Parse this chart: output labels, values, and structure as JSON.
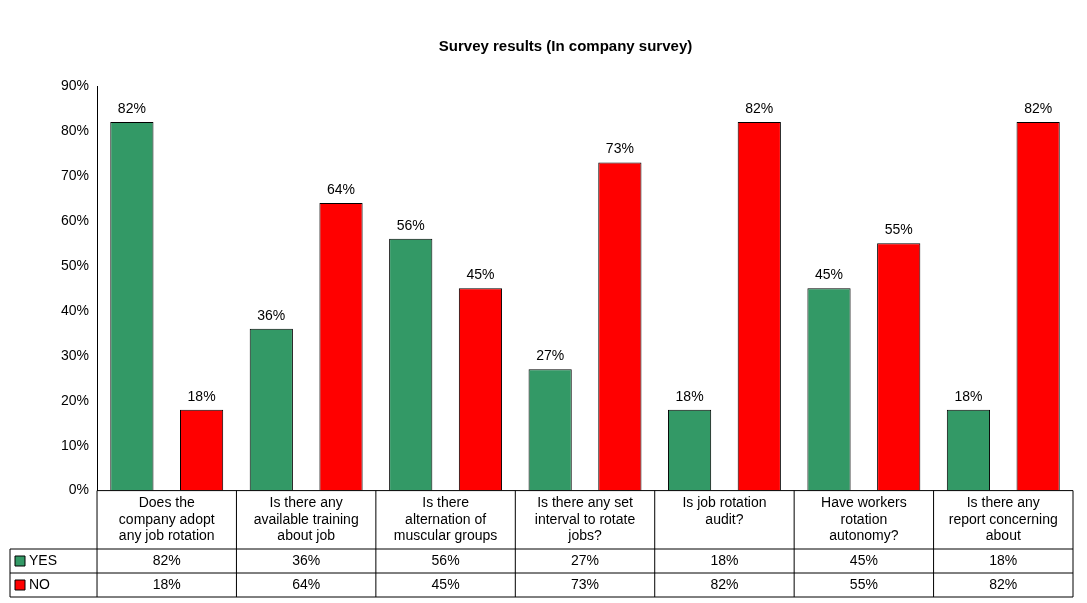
{
  "chart_data": {
    "type": "bar",
    "title": "Survey results (In company survey)",
    "categories": [
      "Does the company adopt any job rotation",
      "Is there any available training about job",
      "Is there alternation of muscular groups",
      "Is there any set interval to rotate jobs?",
      "Is job rotation audit?",
      "Have workers rotation autonomy?",
      "Is there any report concerning about"
    ],
    "series": [
      {
        "name": "YES",
        "color": "#339966",
        "values": [
          82,
          36,
          56,
          27,
          18,
          45,
          18
        ],
        "value_labels": [
          "82%",
          "36%",
          "56%",
          "27%",
          "18%",
          "45%",
          "18%"
        ]
      },
      {
        "name": "NO",
        "color": "#ff0000",
        "values": [
          18,
          64,
          45,
          73,
          82,
          55,
          82
        ],
        "value_labels": [
          "18%",
          "64%",
          "45%",
          "73%",
          "82%",
          "55%",
          "82%"
        ]
      }
    ],
    "ylim": [
      0,
      90
    ],
    "yticks": [
      {
        "value": 0,
        "label": "0%"
      },
      {
        "value": 10,
        "label": "10%"
      },
      {
        "value": 20,
        "label": "20%"
      },
      {
        "value": 30,
        "label": "30%"
      },
      {
        "value": 40,
        "label": "40%"
      },
      {
        "value": 50,
        "label": "50%"
      },
      {
        "value": 60,
        "label": "60%"
      },
      {
        "value": 70,
        "label": "70%"
      },
      {
        "value": 80,
        "label": "80%"
      },
      {
        "value": 90,
        "label": "90%"
      }
    ],
    "legend": "bottom left"
  }
}
